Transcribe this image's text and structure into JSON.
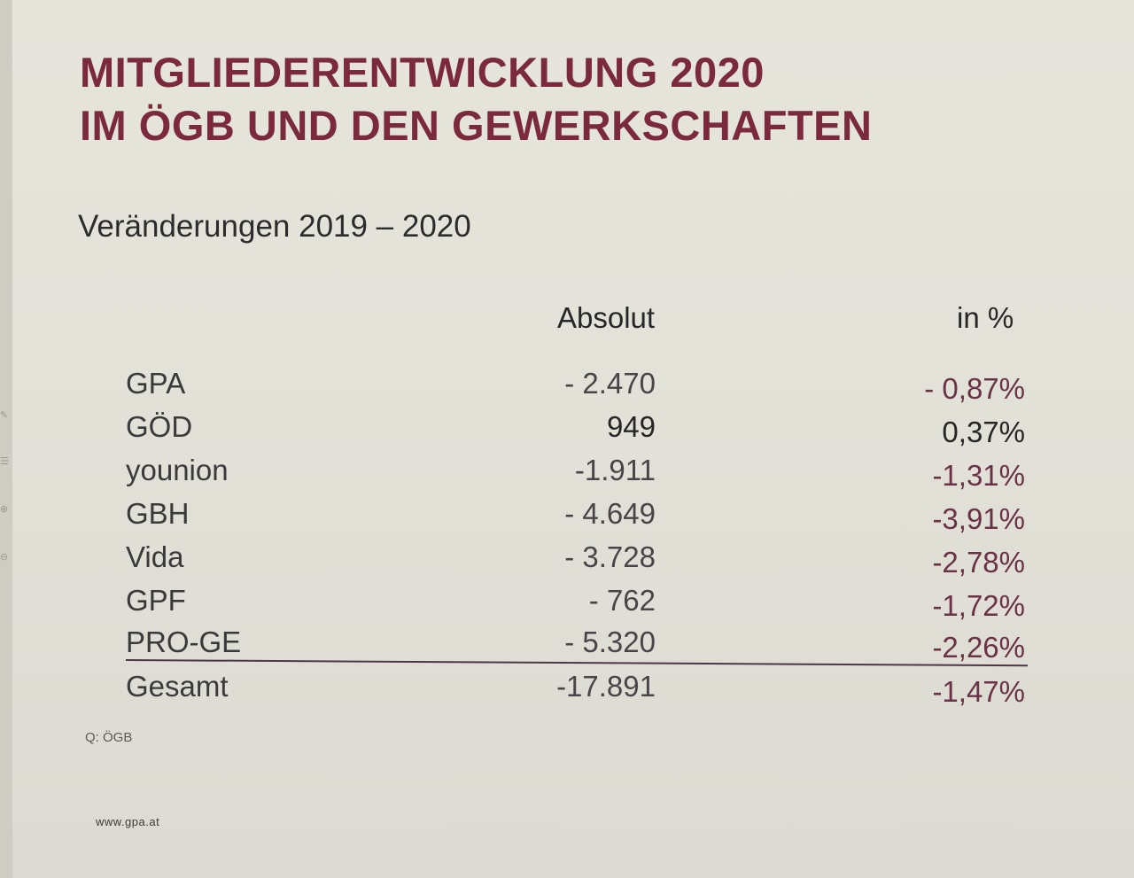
{
  "title": {
    "line1": "MITGLIEDERENTWICKLUNG 2020",
    "line2": "IM ÖGB UND DEN GEWERKSCHAFTEN"
  },
  "subtitle": "Veränderungen 2019 – 2020",
  "columns": {
    "absolute": "Absolut",
    "percent": "in %"
  },
  "rows": [
    {
      "name": "GPA",
      "absolute": "- 2.470",
      "percent": "- 0,87%"
    },
    {
      "name": "GÖD",
      "absolute": "949",
      "percent": "0,37%"
    },
    {
      "name": "younion",
      "absolute": "-1.911",
      "percent": "-1,31%"
    },
    {
      "name": "GBH",
      "absolute": "- 4.649",
      "percent": "-3,91%"
    },
    {
      "name": "Vida",
      "absolute": "- 3.728",
      "percent": "-2,78%"
    },
    {
      "name": "GPF",
      "absolute": "- 762",
      "percent": "-1,72%"
    },
    {
      "name": "PRO-GE",
      "absolute": "- 5.320",
      "percent": "-2,26%"
    }
  ],
  "total": {
    "name": "Gesamt",
    "absolute": "-17.891",
    "percent": "-1,47%"
  },
  "source": "Q: ÖGB",
  "url": "www.gpa.at",
  "colors": {
    "title": "#7a2a3c",
    "percent": "#6a3246",
    "text": "#3a3a3a"
  }
}
